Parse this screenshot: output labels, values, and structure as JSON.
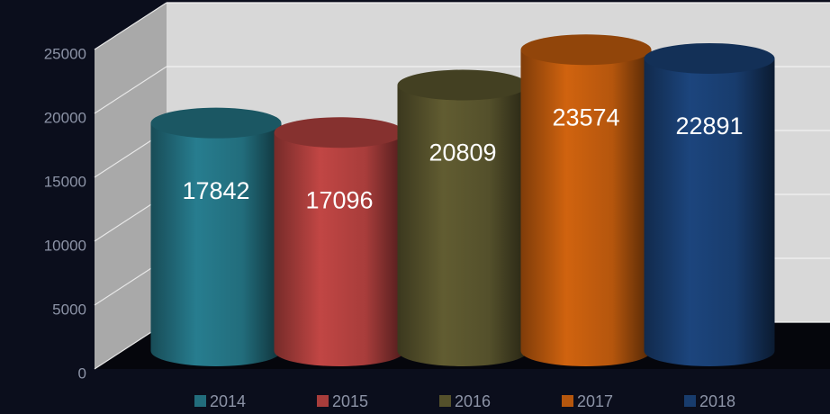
{
  "chart_data": {
    "type": "bar3d",
    "series": [
      {
        "name": "2014",
        "color": "#226d7c",
        "values": [
          17842
        ]
      },
      {
        "name": "2015",
        "color": "#a83d3b",
        "values": [
          17096
        ]
      },
      {
        "name": "2016",
        "color": "#54502b",
        "values": [
          20809
        ]
      },
      {
        "name": "2017",
        "color": "#b5560d",
        "values": [
          23574
        ]
      },
      {
        "name": "2018",
        "color": "#183c6d",
        "values": [
          22891
        ]
      }
    ],
    "ylim": [
      0,
      25000
    ],
    "yticks": [
      0,
      5000,
      10000,
      15000,
      20000,
      25000
    ],
    "grid": true
  }
}
